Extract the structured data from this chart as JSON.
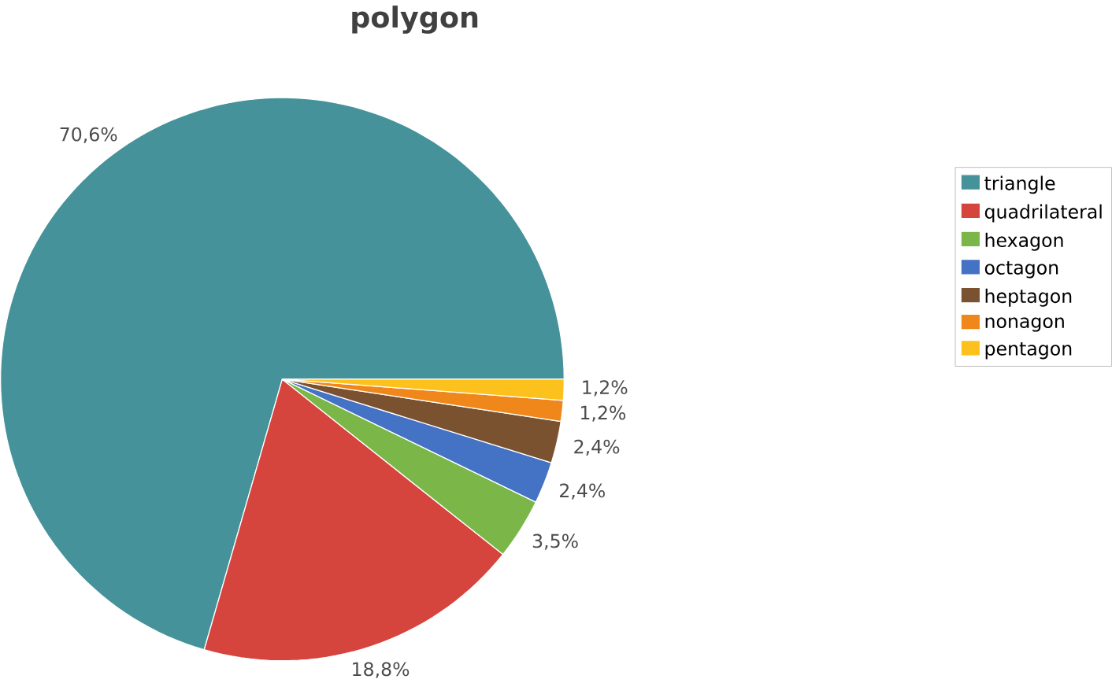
{
  "chart_data": {
    "type": "pie",
    "title": "polygon",
    "categories": [
      "triangle",
      "quadrilateral",
      "hexagon",
      "octagon",
      "heptagon",
      "nonagon",
      "pentagon"
    ],
    "values": [
      70.6,
      18.8,
      3.5,
      2.4,
      2.4,
      1.2,
      1.2
    ],
    "value_labels": [
      "70,6%",
      "18,8%",
      "3,5%",
      "2,4%",
      "2,4%",
      "1,2%",
      "1,2%"
    ],
    "colors": [
      "#46929b",
      "#d5443d",
      "#7ab648",
      "#4472c4",
      "#7a5230",
      "#f0871a",
      "#fcc11c"
    ],
    "legend": "right"
  }
}
